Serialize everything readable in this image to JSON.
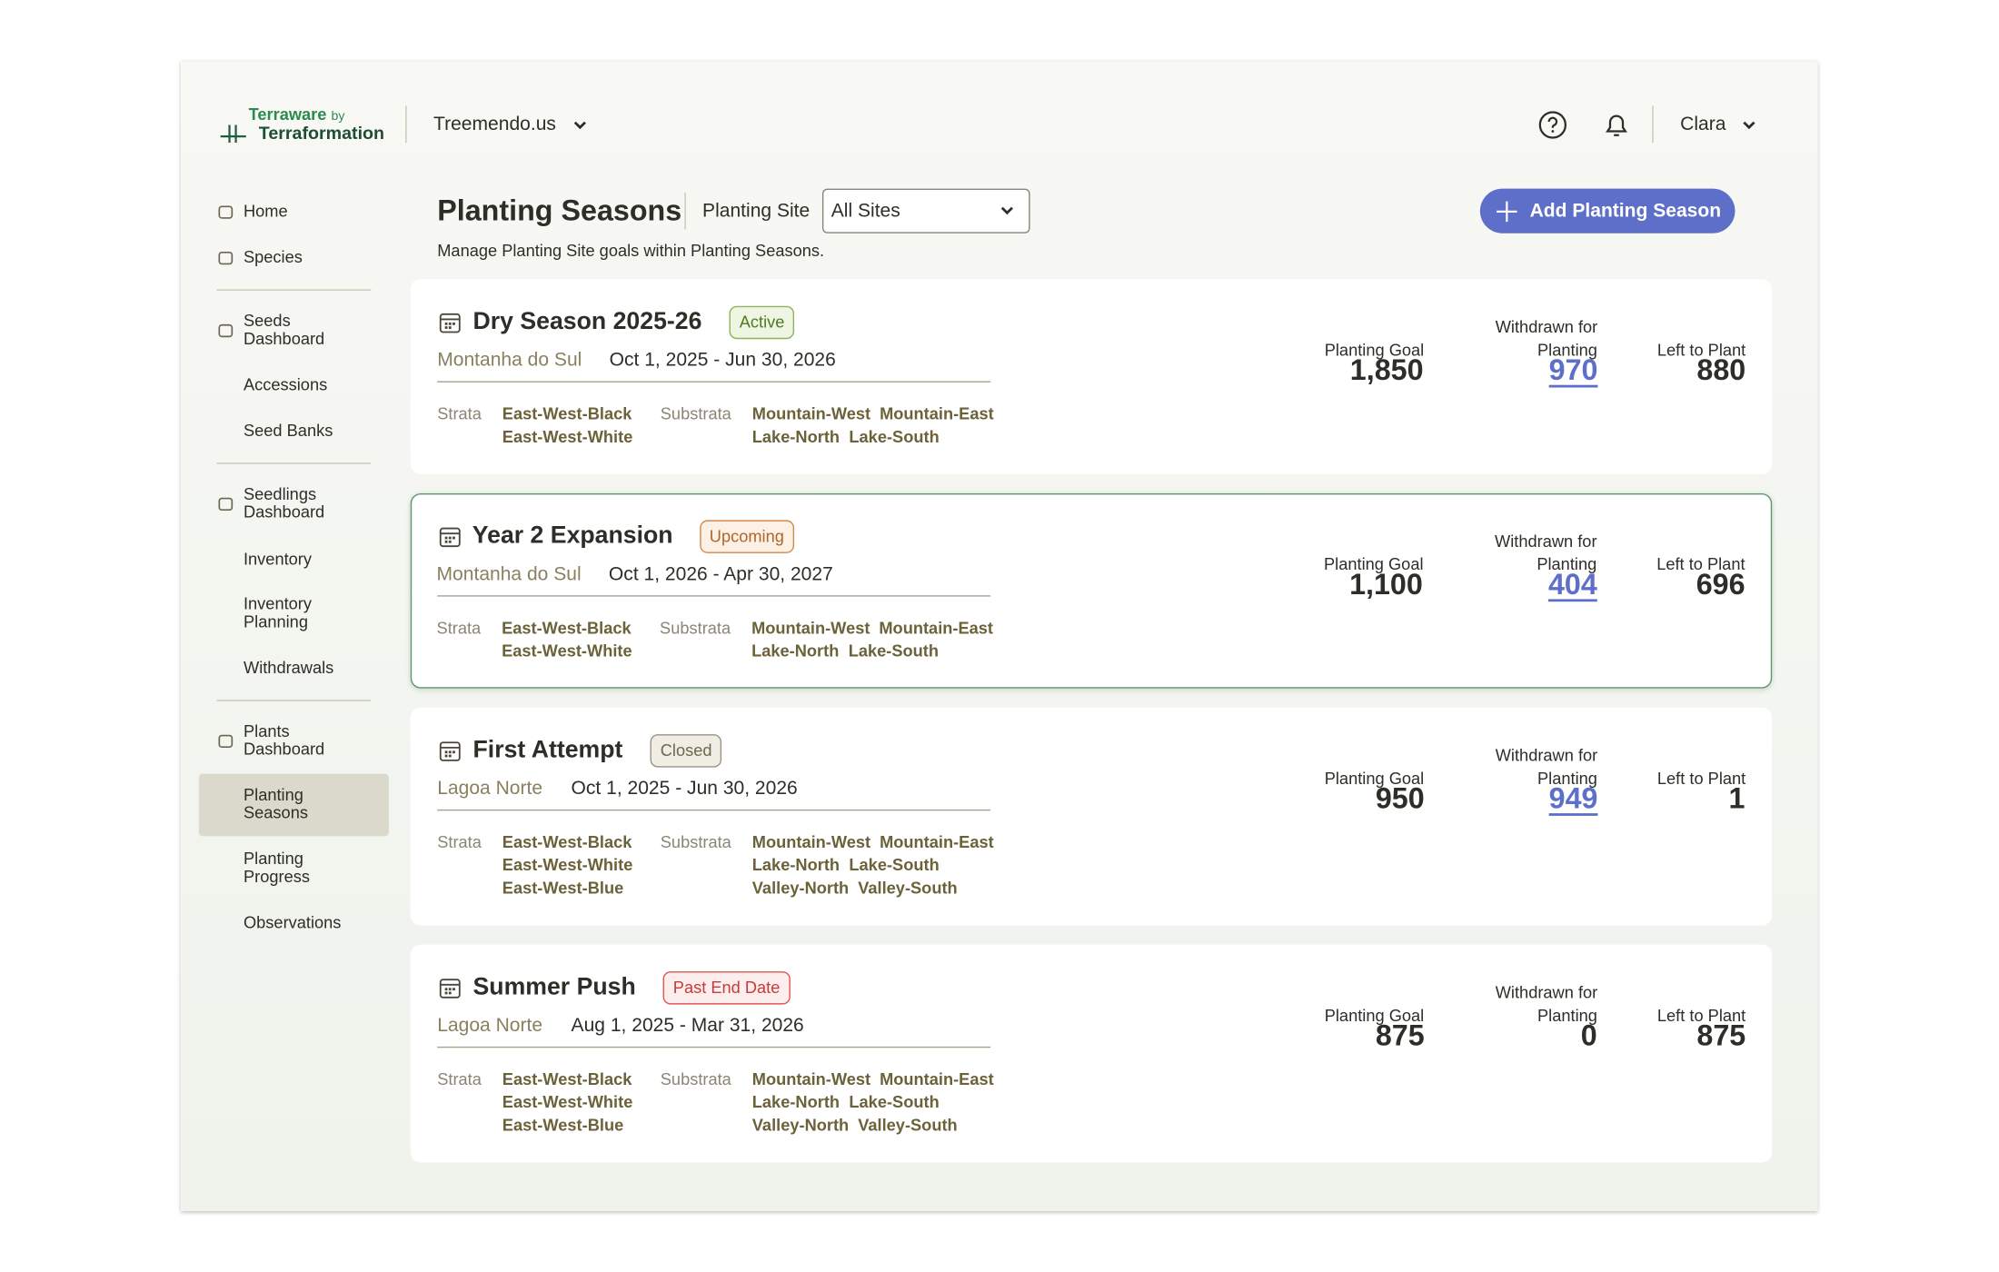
{
  "header": {
    "brand": "Terraware",
    "brand_by": "by",
    "brand_sub": "Terraformation",
    "organization": "Treemendo.us",
    "user": "Clara"
  },
  "nav": [
    {
      "label": "Home",
      "icon": true
    },
    {
      "label": "Species",
      "icon": true,
      "divider_after": true
    },
    {
      "label": "Seeds Dashboard",
      "icon": true
    },
    {
      "label": "Accessions"
    },
    {
      "label": "Seed Banks",
      "divider_after": true
    },
    {
      "label": "Seedlings Dashboard",
      "icon": true
    },
    {
      "label": "Inventory"
    },
    {
      "label": "Inventory Planning"
    },
    {
      "label": "Withdrawals",
      "divider_after": true
    },
    {
      "label": "Plants Dashboard",
      "icon": true
    },
    {
      "label": "Planting Seasons",
      "active": true
    },
    {
      "label": "Planting Progress"
    },
    {
      "label": "Observations"
    }
  ],
  "page": {
    "title": "Planting Seasons",
    "filter_label": "Planting Site",
    "filter_value": "All Sites",
    "add_button": "Add Planting Season",
    "subtitle": "Manage Planting Site goals within Planting Seasons."
  },
  "labels": {
    "strata": "Strata",
    "substrata": "Substrata",
    "planting_goal": "Planting Goal",
    "withdrawn_1": "Withdrawn for",
    "withdrawn_2": "Planting",
    "left_to_plant": "Left to Plant"
  },
  "seasons": [
    {
      "name": "Dry Season 2025-26",
      "status": "Active",
      "site": "Montanha do Sul",
      "dates": "Oct 1, 2025 - Jun 30, 2026",
      "strata": [
        "East-West-Black",
        "East-West-White"
      ],
      "substrata": [
        [
          "Mountain-West",
          "Mountain-East"
        ],
        [
          "Lake-North",
          "Lake-South"
        ]
      ],
      "planting_goal": "1,850",
      "withdrawn": "970",
      "left_to_plant": "880"
    },
    {
      "name": "Year 2 Expansion",
      "status": "Upcoming",
      "site": "Montanha do Sul",
      "dates": "Oct 1, 2026 - Apr 30, 2027",
      "strata": [
        "East-West-Black",
        "East-West-White"
      ],
      "substrata": [
        [
          "Mountain-West",
          "Mountain-East"
        ],
        [
          "Lake-North",
          "Lake-South"
        ]
      ],
      "planting_goal": "1,100",
      "withdrawn": "404",
      "left_to_plant": "696",
      "selected": true
    },
    {
      "name": "First Attempt",
      "status": "Closed",
      "site": "Lagoa Norte",
      "dates": "Oct 1, 2025 - Jun 30, 2026",
      "strata": [
        "East-West-Black",
        "East-West-White",
        "East-West-Blue"
      ],
      "substrata": [
        [
          "Mountain-West",
          "Mountain-East"
        ],
        [
          "Lake-North",
          "Lake-South"
        ],
        [
          "Valley-North",
          "Valley-South"
        ]
      ],
      "planting_goal": "950",
      "withdrawn": "949",
      "left_to_plant": "1"
    },
    {
      "name": "Summer Push",
      "status": "Past End Date",
      "site": "Lagoa Norte",
      "dates": "Aug 1, 2025 - Mar 31, 2026",
      "strata": [
        "East-West-Black",
        "East-West-White",
        "East-West-Blue"
      ],
      "substrata": [
        [
          "Mountain-West",
          "Mountain-East"
        ],
        [
          "Lake-North",
          "Lake-South"
        ],
        [
          "Valley-North",
          "Valley-South"
        ]
      ],
      "planting_goal": "875",
      "withdrawn": "0",
      "left_to_plant": "875"
    }
  ]
}
